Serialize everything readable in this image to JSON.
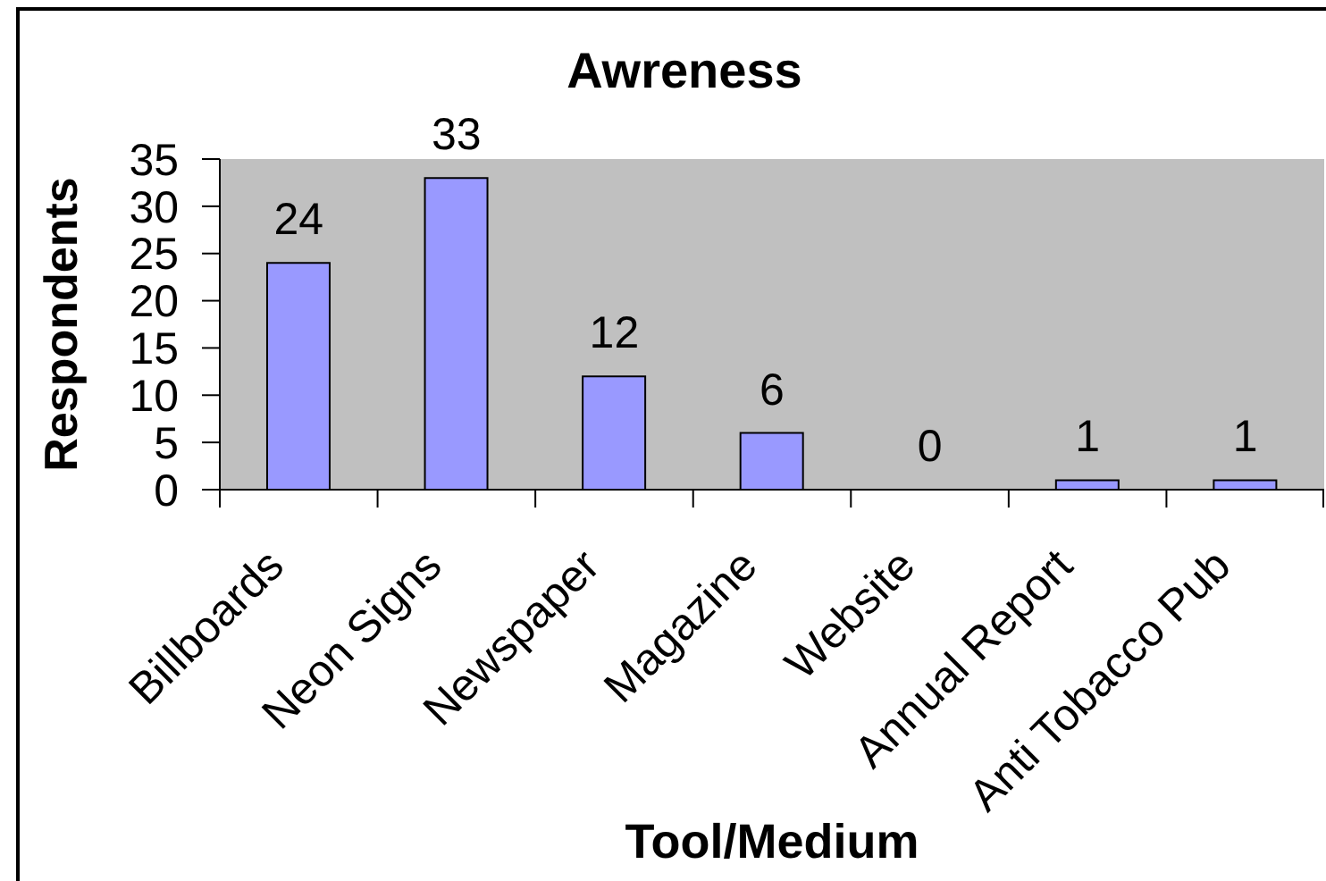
{
  "chart_data": {
    "type": "bar",
    "title": "Awreness",
    "xlabel": "Tool/Medium",
    "ylabel": "Respondents",
    "categories": [
      "Billboards",
      "Neon Signs",
      "Newspaper",
      "Magazine",
      "Website",
      "Annual Report",
      "Anti Tobacco Pub"
    ],
    "values": [
      24,
      33,
      12,
      6,
      0,
      1,
      1
    ],
    "color": "#9999ff",
    "ylim": [
      0,
      35
    ],
    "yticks": [
      0,
      5,
      10,
      15,
      20,
      25,
      30,
      35
    ],
    "data_labels": true
  }
}
